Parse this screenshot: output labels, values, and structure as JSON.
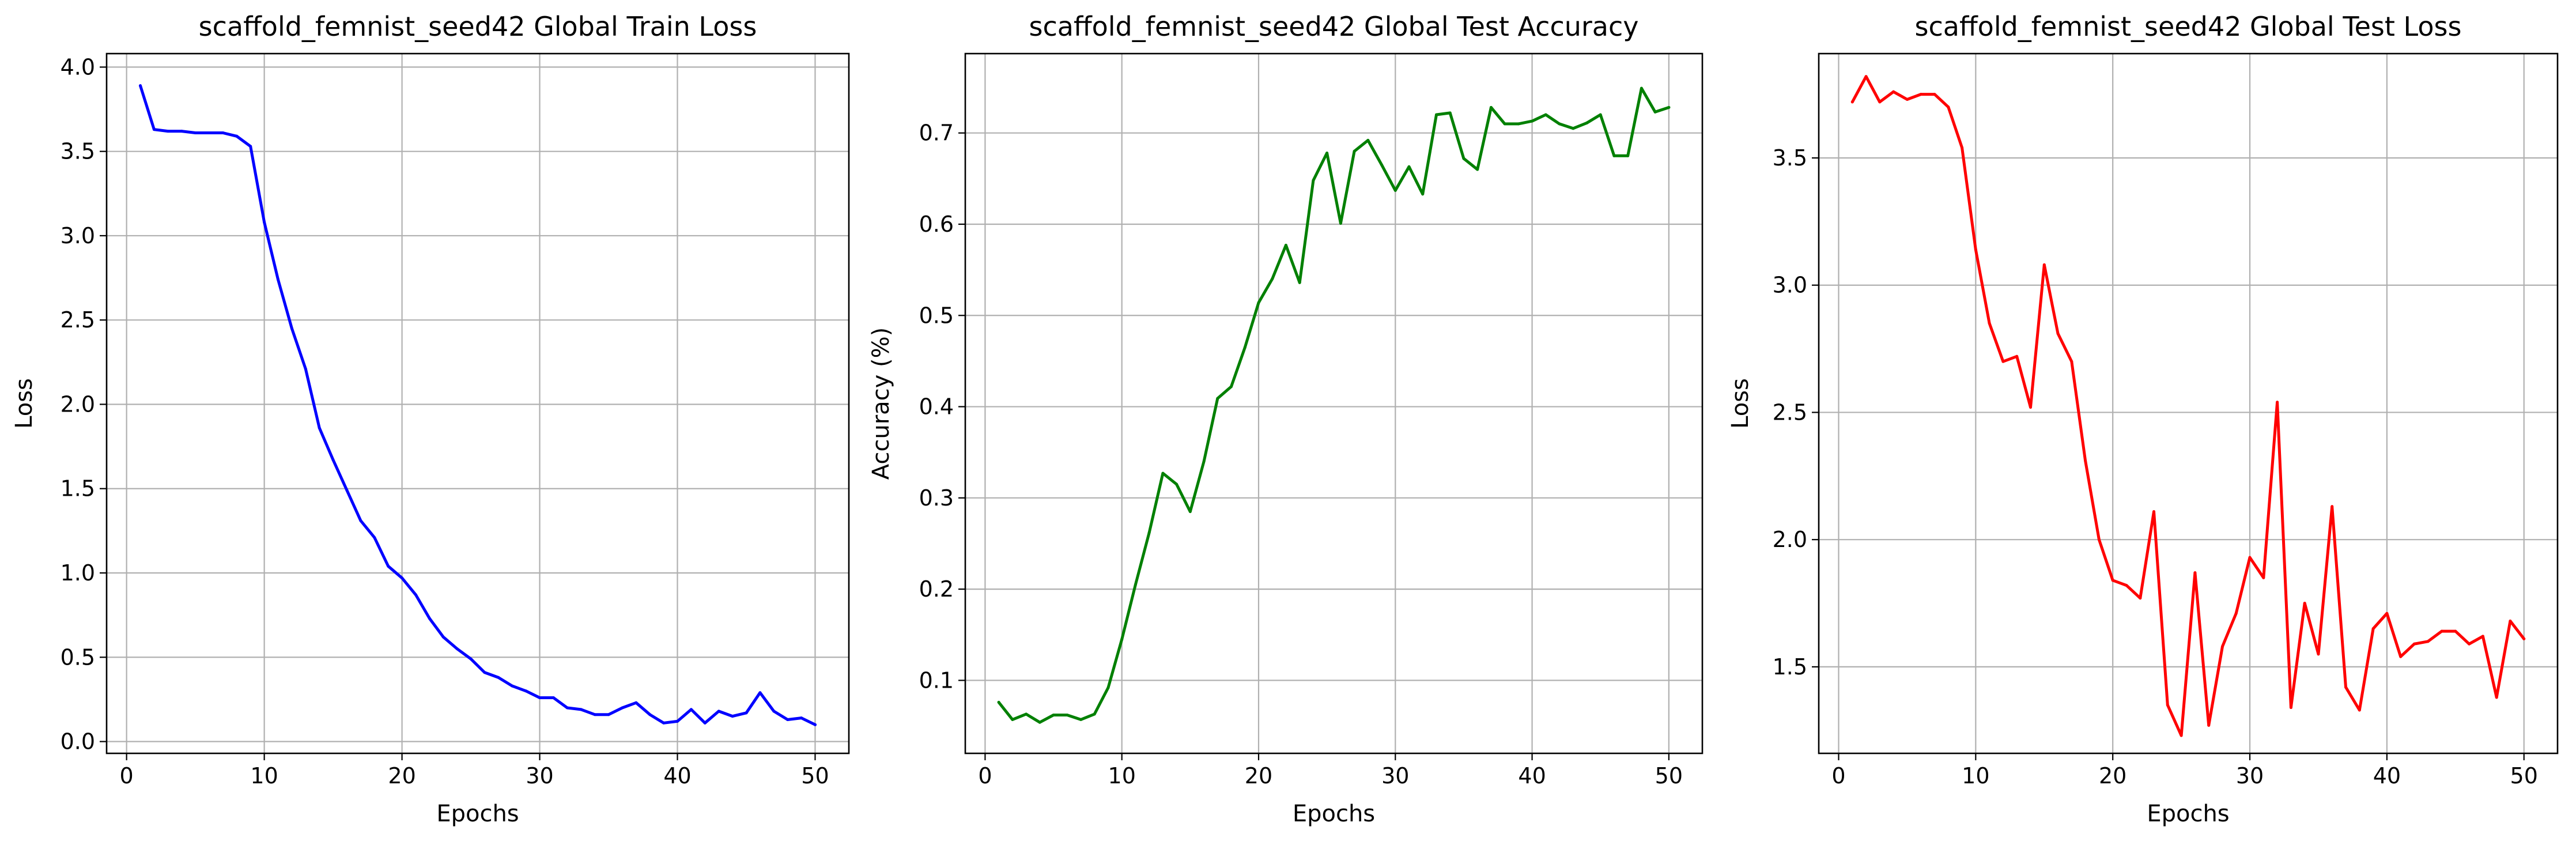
{
  "chart_data": [
    {
      "type": "line",
      "title": "scaffold_femnist_seed42 Global Train Loss",
      "xlabel": "Epochs",
      "ylabel": "Loss",
      "xlim": [
        -1.45,
        52.45
      ],
      "ylim": [
        -0.07,
        4.08
      ],
      "xticks": [
        0,
        10,
        20,
        30,
        40,
        50
      ],
      "yticks": [
        0.0,
        0.5,
        1.0,
        1.5,
        2.0,
        2.5,
        3.0,
        3.5,
        4.0
      ],
      "ytick_labels": [
        "0.0",
        "0.5",
        "1.0",
        "1.5",
        "2.0",
        "2.5",
        "3.0",
        "3.5",
        "4.0"
      ],
      "grid": true,
      "color": "#0000ff",
      "x": [
        1,
        2,
        3,
        4,
        5,
        6,
        7,
        8,
        9,
        10,
        11,
        12,
        13,
        14,
        15,
        16,
        17,
        18,
        19,
        20,
        21,
        22,
        23,
        24,
        25,
        26,
        27,
        28,
        29,
        30,
        31,
        32,
        33,
        34,
        35,
        36,
        37,
        38,
        39,
        40,
        41,
        42,
        43,
        44,
        45,
        46,
        47,
        48,
        49,
        50
      ],
      "y": [
        3.89,
        3.63,
        3.62,
        3.62,
        3.61,
        3.61,
        3.61,
        3.59,
        3.53,
        3.08,
        2.74,
        2.45,
        2.21,
        1.86,
        1.67,
        1.49,
        1.31,
        1.21,
        1.04,
        0.97,
        0.87,
        0.73,
        0.62,
        0.55,
        0.49,
        0.41,
        0.38,
        0.33,
        0.3,
        0.26,
        0.26,
        0.2,
        0.19,
        0.16,
        0.16,
        0.2,
        0.23,
        0.16,
        0.11,
        0.12,
        0.19,
        0.11,
        0.18,
        0.15,
        0.17,
        0.29,
        0.18,
        0.13,
        0.14,
        0.1
      ]
    },
    {
      "type": "line",
      "title": "scaffold_femnist_seed42 Global Test Accuracy",
      "xlabel": "Epochs",
      "ylabel": "Accuracy (%)",
      "xlim": [
        -1.45,
        52.45
      ],
      "ylim": [
        0.02,
        0.787
      ],
      "xticks": [
        0,
        10,
        20,
        30,
        40,
        50
      ],
      "yticks": [
        0.1,
        0.2,
        0.3,
        0.4,
        0.5,
        0.6,
        0.7
      ],
      "ytick_labels": [
        "0.1",
        "0.2",
        "0.3",
        "0.4",
        "0.5",
        "0.6",
        "0.7"
      ],
      "grid": true,
      "color": "#008000",
      "x": [
        1,
        2,
        3,
        4,
        5,
        6,
        7,
        8,
        9,
        10,
        11,
        12,
        13,
        14,
        15,
        16,
        17,
        18,
        19,
        20,
        21,
        22,
        23,
        24,
        25,
        26,
        27,
        28,
        29,
        30,
        31,
        32,
        33,
        34,
        35,
        36,
        37,
        38,
        39,
        40,
        41,
        42,
        43,
        44,
        45,
        46,
        47,
        48,
        49,
        50
      ],
      "y": [
        0.076,
        0.057,
        0.063,
        0.054,
        0.062,
        0.062,
        0.057,
        0.063,
        0.092,
        0.145,
        0.205,
        0.262,
        0.327,
        0.315,
        0.285,
        0.34,
        0.409,
        0.422,
        0.465,
        0.514,
        0.54,
        0.577,
        0.536,
        0.648,
        0.678,
        0.601,
        0.68,
        0.692,
        0.665,
        0.637,
        0.663,
        0.633,
        0.72,
        0.722,
        0.672,
        0.66,
        0.728,
        0.71,
        0.71,
        0.713,
        0.72,
        0.71,
        0.705,
        0.711,
        0.72,
        0.675,
        0.675,
        0.749,
        0.723,
        0.728
      ]
    },
    {
      "type": "line",
      "title": "scaffold_femnist_seed42 Global Test Loss",
      "xlabel": "Epochs",
      "ylabel": "Loss",
      "xlim": [
        -1.45,
        52.45
      ],
      "ylim": [
        1.16,
        3.91
      ],
      "xticks": [
        0,
        10,
        20,
        30,
        40,
        50
      ],
      "yticks": [
        1.5,
        2.0,
        2.5,
        3.0,
        3.5
      ],
      "ytick_labels": [
        "1.5",
        "2.0",
        "2.5",
        "3.0",
        "3.5"
      ],
      "grid": true,
      "color": "#ff0000",
      "x": [
        1,
        2,
        3,
        4,
        5,
        6,
        7,
        8,
        9,
        10,
        11,
        12,
        13,
        14,
        15,
        16,
        17,
        18,
        19,
        20,
        21,
        22,
        23,
        24,
        25,
        26,
        27,
        28,
        29,
        30,
        31,
        32,
        33,
        34,
        35,
        36,
        37,
        38,
        39,
        40,
        41,
        42,
        43,
        44,
        45,
        46,
        47,
        48,
        49,
        50
      ],
      "y": [
        3.72,
        3.82,
        3.72,
        3.76,
        3.73,
        3.75,
        3.75,
        3.7,
        3.54,
        3.14,
        2.85,
        2.7,
        2.72,
        2.52,
        3.08,
        2.81,
        2.7,
        2.31,
        2.0,
        1.84,
        1.82,
        1.77,
        2.11,
        1.35,
        1.23,
        1.87,
        1.27,
        1.58,
        1.71,
        1.93,
        1.85,
        2.54,
        1.34,
        1.75,
        1.55,
        2.13,
        1.42,
        1.33,
        1.65,
        1.71,
        1.54,
        1.59,
        1.6,
        1.64,
        1.64,
        1.59,
        1.62,
        1.38,
        1.68,
        1.61
      ]
    }
  ]
}
